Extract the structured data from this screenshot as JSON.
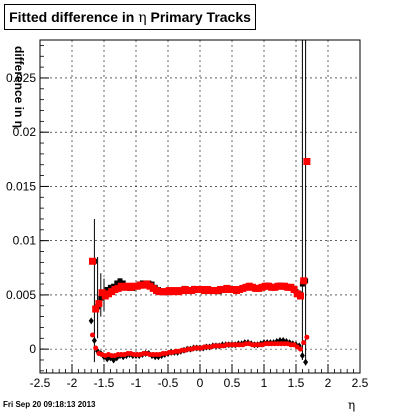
{
  "chart_data": {
    "type": "scatter",
    "title": "Fitted difference in η  Primary Tracks",
    "title_prefix": "Fitted difference in",
    "title_symbol": "η",
    "title_suffix": "Primary Tracks",
    "xlabel": "η",
    "ylabel": "difference in η",
    "xlim": [
      -2.5,
      2.5
    ],
    "ylim": [
      -0.0022,
      0.0285
    ],
    "xticks": [
      "-2.5",
      "-2",
      "-1.5",
      "-1",
      "-0.5",
      "0",
      "0.5",
      "1",
      "1.5",
      "2",
      "2.5"
    ],
    "yticks": [
      "0",
      "0.005",
      "0.01",
      "0.015",
      "0.02",
      "0.025"
    ],
    "grid": true,
    "timestamp": "Fri Sep 20 09:18:13 2013",
    "series": [
      {
        "marker": "square",
        "color": "#000000",
        "size": 5,
        "points": [
          [
            -1.65,
            0.0081
          ],
          [
            -1.6,
            0.0039
          ],
          [
            -1.55,
            0.0047
          ],
          [
            -1.5,
            0.0049
          ],
          [
            -1.45,
            0.0055
          ],
          [
            -1.4,
            0.0057
          ],
          [
            -1.35,
            0.0058
          ],
          [
            -1.3,
            0.0061
          ],
          [
            -1.25,
            0.0063
          ],
          [
            -1.2,
            0.0061
          ],
          [
            -1.15,
            0.0058
          ],
          [
            -1.1,
            0.0056
          ],
          [
            -1.05,
            0.0056
          ],
          [
            -1.0,
            0.0058
          ],
          [
            -0.95,
            0.006
          ],
          [
            -0.9,
            0.0061
          ],
          [
            -0.85,
            0.0061
          ],
          [
            -0.8,
            0.0061
          ],
          [
            -0.75,
            0.006
          ],
          [
            -0.7,
            0.0057
          ],
          [
            -0.65,
            0.0055
          ],
          [
            -0.6,
            0.0053
          ],
          [
            -0.55,
            0.0052
          ],
          [
            -0.5,
            0.0053
          ],
          [
            -0.45,
            0.0054
          ],
          [
            -0.4,
            0.0053
          ],
          [
            -0.35,
            0.0053
          ],
          [
            -0.3,
            0.0054
          ],
          [
            -0.25,
            0.0056
          ],
          [
            -0.2,
            0.0054
          ],
          [
            -0.15,
            0.0055
          ],
          [
            -0.1,
            0.0056
          ],
          [
            -0.05,
            0.0055
          ],
          [
            0.0,
            0.0055
          ],
          [
            0.05,
            0.0055
          ],
          [
            0.1,
            0.0054
          ],
          [
            0.15,
            0.0054
          ],
          [
            0.2,
            0.0054
          ],
          [
            0.25,
            0.0054
          ],
          [
            0.3,
            0.0053
          ],
          [
            0.35,
            0.0054
          ],
          [
            0.4,
            0.0055
          ],
          [
            0.45,
            0.0056
          ],
          [
            0.5,
            0.0055
          ],
          [
            0.55,
            0.0055
          ],
          [
            0.6,
            0.0055
          ],
          [
            0.65,
            0.0056
          ],
          [
            0.7,
            0.0057
          ],
          [
            0.75,
            0.0058
          ],
          [
            0.8,
            0.0057
          ],
          [
            0.85,
            0.0056
          ],
          [
            0.9,
            0.0056
          ],
          [
            0.95,
            0.0057
          ],
          [
            1.0,
            0.0058
          ],
          [
            1.05,
            0.0059
          ],
          [
            1.1,
            0.0058
          ],
          [
            1.15,
            0.0057
          ],
          [
            1.2,
            0.0058
          ],
          [
            1.25,
            0.0059
          ],
          [
            1.3,
            0.0058
          ],
          [
            1.35,
            0.0057
          ],
          [
            1.4,
            0.0057
          ],
          [
            1.45,
            0.0056
          ],
          [
            1.5,
            0.0053
          ],
          [
            1.55,
            0.0051
          ],
          [
            1.6,
            0.006
          ],
          [
            1.65,
            0.0063
          ]
        ]
      },
      {
        "marker": "square",
        "color": "#ff0000",
        "size": 7,
        "points": [
          [
            -1.68,
            0.0081
          ],
          [
            -1.63,
            0.0037
          ],
          [
            -1.58,
            0.0042
          ],
          [
            -1.53,
            0.0052
          ],
          [
            -1.48,
            0.0049
          ],
          [
            -1.43,
            0.0051
          ],
          [
            -1.38,
            0.0053
          ],
          [
            -1.33,
            0.0055
          ],
          [
            -1.28,
            0.0056
          ],
          [
            -1.23,
            0.0058
          ],
          [
            -1.18,
            0.0057
          ],
          [
            -1.13,
            0.0058
          ],
          [
            -1.08,
            0.0057
          ],
          [
            -1.03,
            0.0058
          ],
          [
            -0.98,
            0.0058
          ],
          [
            -0.93,
            0.0059
          ],
          [
            -0.88,
            0.0059
          ],
          [
            -0.83,
            0.006
          ],
          [
            -0.78,
            0.0058
          ],
          [
            -0.73,
            0.0056
          ],
          [
            -0.68,
            0.0054
          ],
          [
            -0.63,
            0.0053
          ],
          [
            -0.58,
            0.0053
          ],
          [
            -0.53,
            0.0053
          ],
          [
            -0.48,
            0.0054
          ],
          [
            -0.43,
            0.0053
          ],
          [
            -0.38,
            0.0054
          ],
          [
            -0.33,
            0.0053
          ],
          [
            -0.28,
            0.0054
          ],
          [
            -0.23,
            0.0055
          ],
          [
            -0.18,
            0.0054
          ],
          [
            -0.13,
            0.0054
          ],
          [
            -0.08,
            0.0055
          ],
          [
            -0.03,
            0.0055
          ],
          [
            0.02,
            0.0055
          ],
          [
            0.07,
            0.0054
          ],
          [
            0.12,
            0.0055
          ],
          [
            0.17,
            0.0054
          ],
          [
            0.22,
            0.0054
          ],
          [
            0.27,
            0.0054
          ],
          [
            0.32,
            0.0055
          ],
          [
            0.37,
            0.0055
          ],
          [
            0.42,
            0.0056
          ],
          [
            0.47,
            0.0055
          ],
          [
            0.52,
            0.0055
          ],
          [
            0.57,
            0.0054
          ],
          [
            0.62,
            0.0055
          ],
          [
            0.67,
            0.0056
          ],
          [
            0.72,
            0.0057
          ],
          [
            0.77,
            0.0058
          ],
          [
            0.82,
            0.0057
          ],
          [
            0.87,
            0.0056
          ],
          [
            0.92,
            0.0056
          ],
          [
            0.97,
            0.0057
          ],
          [
            1.02,
            0.0058
          ],
          [
            1.07,
            0.0058
          ],
          [
            1.12,
            0.0057
          ],
          [
            1.17,
            0.0057
          ],
          [
            1.22,
            0.0058
          ],
          [
            1.27,
            0.0058
          ],
          [
            1.32,
            0.0058
          ],
          [
            1.37,
            0.0057
          ],
          [
            1.42,
            0.0057
          ],
          [
            1.47,
            0.0055
          ],
          [
            1.52,
            0.0051
          ],
          [
            1.57,
            0.0049
          ],
          [
            1.62,
            0.0063
          ],
          [
            1.67,
            0.0173
          ]
        ]
      },
      {
        "marker": "diamond",
        "color": "#000000",
        "size": 5,
        "points": [
          [
            -1.7,
            0.0026
          ],
          [
            -1.65,
            0.0008
          ],
          [
            -1.6,
            -0.0002
          ],
          [
            -1.55,
            -0.0004
          ],
          [
            -1.5,
            -0.0007
          ],
          [
            -1.45,
            -0.0009
          ],
          [
            -1.4,
            -0.0008
          ],
          [
            -1.35,
            -0.001
          ],
          [
            -1.3,
            -0.0008
          ],
          [
            -1.25,
            -0.0006
          ],
          [
            -1.2,
            -0.0007
          ],
          [
            -1.15,
            -0.0006
          ],
          [
            -1.1,
            -0.0005
          ],
          [
            -1.05,
            -0.0006
          ],
          [
            -1.0,
            -0.0006
          ],
          [
            -0.95,
            -0.0006
          ],
          [
            -0.9,
            -0.0005
          ],
          [
            -0.85,
            -0.0004
          ],
          [
            -0.8,
            -0.0004
          ],
          [
            -0.75,
            -0.0006
          ],
          [
            -0.7,
            -0.0007
          ],
          [
            -0.65,
            -0.0007
          ],
          [
            -0.6,
            -0.0006
          ],
          [
            -0.55,
            -0.0005
          ],
          [
            -0.5,
            -0.0004
          ],
          [
            -0.45,
            -0.0003
          ],
          [
            -0.4,
            -0.0003
          ],
          [
            -0.35,
            -0.0003
          ],
          [
            -0.3,
            -0.0002
          ],
          [
            -0.25,
            -0.0001
          ],
          [
            -0.2,
            0.0
          ],
          [
            -0.15,
            0.0
          ],
          [
            -0.1,
            0.0001
          ],
          [
            -0.05,
            0.0001
          ],
          [
            0.0,
            0.0001
          ],
          [
            0.05,
            0.0001
          ],
          [
            0.1,
            0.0002
          ],
          [
            0.15,
            0.0002
          ],
          [
            0.2,
            0.0003
          ],
          [
            0.25,
            0.0003
          ],
          [
            0.3,
            0.0003
          ],
          [
            0.35,
            0.0004
          ],
          [
            0.4,
            0.0004
          ],
          [
            0.45,
            0.0004
          ],
          [
            0.5,
            0.0004
          ],
          [
            0.55,
            0.0004
          ],
          [
            0.6,
            0.0005
          ],
          [
            0.65,
            0.0005
          ],
          [
            0.7,
            0.0006
          ],
          [
            0.75,
            0.0006
          ],
          [
            0.8,
            0.0005
          ],
          [
            0.85,
            0.0004
          ],
          [
            0.9,
            0.0004
          ],
          [
            0.95,
            0.0005
          ],
          [
            1.0,
            0.0006
          ],
          [
            1.05,
            0.0006
          ],
          [
            1.1,
            0.0006
          ],
          [
            1.15,
            0.0006
          ],
          [
            1.2,
            0.0007
          ],
          [
            1.25,
            0.0008
          ],
          [
            1.3,
            0.0008
          ],
          [
            1.35,
            0.0007
          ],
          [
            1.4,
            0.0006
          ],
          [
            1.45,
            0.0005
          ],
          [
            1.5,
            0.0004
          ],
          [
            1.55,
            0.0003
          ],
          [
            1.6,
            -0.0006
          ],
          [
            1.65,
            -0.0012
          ]
        ]
      },
      {
        "marker": "circle",
        "color": "#ff0000",
        "size": 5,
        "points": [
          [
            -1.68,
            0.0013
          ],
          [
            -1.63,
            0.0001
          ],
          [
            -1.58,
            -0.0004
          ],
          [
            -1.53,
            -0.0005
          ],
          [
            -1.48,
            -0.0006
          ],
          [
            -1.43,
            -0.0005
          ],
          [
            -1.38,
            -0.0006
          ],
          [
            -1.33,
            -0.0006
          ],
          [
            -1.28,
            -0.0005
          ],
          [
            -1.23,
            -0.0005
          ],
          [
            -1.18,
            -0.0005
          ],
          [
            -1.13,
            -0.0004
          ],
          [
            -1.08,
            -0.0004
          ],
          [
            -1.03,
            -0.0005
          ],
          [
            -0.98,
            -0.0005
          ],
          [
            -0.93,
            -0.0005
          ],
          [
            -0.88,
            -0.0004
          ],
          [
            -0.83,
            -0.0004
          ],
          [
            -0.78,
            -0.0005
          ],
          [
            -0.73,
            -0.0005
          ],
          [
            -0.68,
            -0.0005
          ],
          [
            -0.63,
            -0.0005
          ],
          [
            -0.58,
            -0.0004
          ],
          [
            -0.53,
            -0.0004
          ],
          [
            -0.48,
            -0.0003
          ],
          [
            -0.43,
            -0.0003
          ],
          [
            -0.38,
            -0.0002
          ],
          [
            -0.33,
            -0.0002
          ],
          [
            -0.28,
            -0.0001
          ],
          [
            -0.23,
            -0.0001
          ],
          [
            -0.18,
            0.0
          ],
          [
            -0.13,
            0.0
          ],
          [
            -0.08,
            0.0001
          ],
          [
            -0.03,
            0.0001
          ],
          [
            0.02,
            0.0001
          ],
          [
            0.07,
            0.0002
          ],
          [
            0.12,
            0.0002
          ],
          [
            0.17,
            0.0002
          ],
          [
            0.22,
            0.0003
          ],
          [
            0.27,
            0.0003
          ],
          [
            0.32,
            0.0003
          ],
          [
            0.37,
            0.0003
          ],
          [
            0.42,
            0.0004
          ],
          [
            0.47,
            0.0004
          ],
          [
            0.52,
            0.0004
          ],
          [
            0.57,
            0.0004
          ],
          [
            0.62,
            0.0004
          ],
          [
            0.67,
            0.0004
          ],
          [
            0.72,
            0.0005
          ],
          [
            0.77,
            0.0005
          ],
          [
            0.82,
            0.0004
          ],
          [
            0.87,
            0.0004
          ],
          [
            0.92,
            0.0004
          ],
          [
            0.97,
            0.0004
          ],
          [
            1.02,
            0.0005
          ],
          [
            1.07,
            0.0005
          ],
          [
            1.12,
            0.0005
          ],
          [
            1.17,
            0.0005
          ],
          [
            1.22,
            0.0005
          ],
          [
            1.27,
            0.0005
          ],
          [
            1.32,
            0.0005
          ],
          [
            1.37,
            0.0005
          ],
          [
            1.42,
            0.0004
          ],
          [
            1.47,
            0.0004
          ],
          [
            1.52,
            0.0002
          ],
          [
            1.57,
            0.0
          ],
          [
            1.62,
            0.0006
          ],
          [
            1.67,
            0.0011
          ]
        ]
      }
    ],
    "error_bars": [
      {
        "x": -1.65,
        "ylow": -0.0012,
        "yhigh": 0.012
      },
      {
        "x": -1.6,
        "ylow": 0.001,
        "yhigh": 0.0085
      },
      {
        "x": -1.55,
        "ylow": 0.003,
        "yhigh": 0.007
      },
      {
        "x": -1.5,
        "ylow": 0.0035,
        "yhigh": 0.0065
      },
      {
        "x": 1.6,
        "ylow": -0.001,
        "yhigh": 0.0285
      },
      {
        "x": 1.65,
        "ylow": -0.0015,
        "yhigh": 0.0285
      }
    ]
  }
}
